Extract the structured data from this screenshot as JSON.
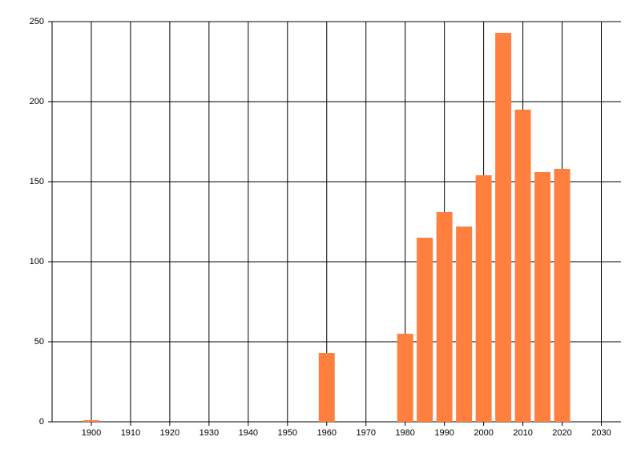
{
  "chart_data": {
    "type": "bar",
    "x": [
      1900,
      1960,
      1980,
      1985,
      1990,
      1995,
      2000,
      2005,
      2010,
      2015,
      2020
    ],
    "values": [
      1,
      43,
      55,
      115,
      131,
      122,
      154,
      243,
      195,
      156,
      158
    ],
    "color": "#ff7f3f",
    "xlim": [
      1890,
      2035
    ],
    "xticks": [
      1900,
      1910,
      1920,
      1930,
      1940,
      1950,
      1960,
      1970,
      1980,
      1990,
      2000,
      2010,
      2020,
      2030
    ],
    "ylim": [
      0,
      250
    ],
    "yticks": [
      0,
      50,
      100,
      150,
      200,
      250
    ],
    "grid": true
  }
}
